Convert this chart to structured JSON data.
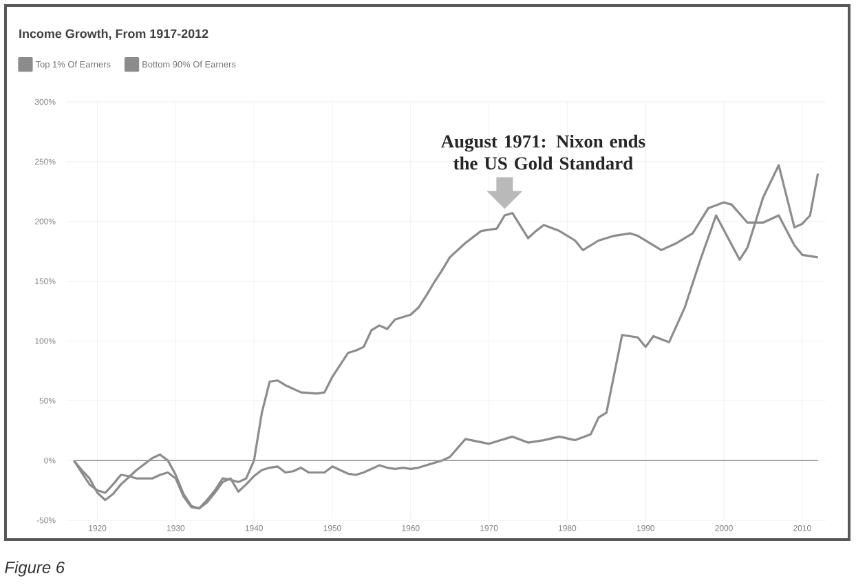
{
  "chart_data": {
    "type": "line",
    "title": "Income Growth, From 1917-2012",
    "series": [
      {
        "name": "Top 1% Of Earners",
        "color": "#8c8c8c",
        "x": [
          1917,
          1918,
          1919,
          1920,
          1921,
          1922,
          1923,
          1924,
          1925,
          1926,
          1927,
          1928,
          1929,
          1930,
          1931,
          1932,
          1933,
          1934,
          1935,
          1936,
          1937,
          1938,
          1939,
          1940,
          1941,
          1942,
          1943,
          1944,
          1945,
          1946,
          1947,
          1948,
          1949,
          1950,
          1951,
          1952,
          1953,
          1954,
          1955,
          1956,
          1957,
          1958,
          1959,
          1960,
          1961,
          1962,
          1963,
          1964,
          1965,
          1967,
          1970,
          1973,
          1975,
          1977,
          1979,
          1981,
          1983,
          1984,
          1985,
          1987,
          1989,
          1990,
          1991,
          1993,
          1995,
          1997,
          1999,
          2002,
          2003,
          2005,
          2007,
          2009,
          2010,
          2011,
          2012
        ],
        "values": [
          0,
          -8,
          -15,
          -27,
          -33,
          -28,
          -20,
          -14,
          -8,
          -3,
          2,
          5,
          0,
          -12,
          -28,
          -38,
          -40,
          -35,
          -27,
          -18,
          -15,
          -26,
          -20,
          -13,
          -8,
          -6,
          -5,
          -10,
          -9,
          -6,
          -10,
          -10,
          -10,
          -5,
          -8,
          -11,
          -12,
          -10,
          -7,
          -4,
          -6,
          -7,
          -6,
          -7,
          -6,
          -4,
          -2,
          0,
          3,
          18,
          14,
          20,
          15,
          17,
          20,
          17,
          22,
          36,
          40,
          105,
          103,
          95,
          104,
          99,
          128,
          168,
          205,
          168,
          178,
          220,
          247,
          195,
          198,
          205,
          240
        ]
      },
      {
        "name": "Bottom 90% Of Earners",
        "color": "#8c8c8c",
        "x": [
          1917,
          1918,
          1919,
          1920,
          1921,
          1922,
          1923,
          1924,
          1925,
          1926,
          1927,
          1928,
          1929,
          1930,
          1931,
          1932,
          1933,
          1934,
          1935,
          1936,
          1937,
          1938,
          1939,
          1940,
          1941,
          1942,
          1943,
          1944,
          1946,
          1948,
          1949,
          1950,
          1952,
          1953,
          1954,
          1955,
          1956,
          1957,
          1958,
          1960,
          1961,
          1962,
          1963,
          1964,
          1965,
          1967,
          1969,
          1970,
          1971,
          1972,
          1973,
          1975,
          1976,
          1977,
          1979,
          1981,
          1982,
          1984,
          1986,
          1988,
          1989,
          1991,
          1992,
          1994,
          1996,
          1998,
          2000,
          2001,
          2003,
          2005,
          2007,
          2009,
          2010,
          2012
        ],
        "values": [
          0,
          -10,
          -20,
          -25,
          -27,
          -20,
          -12,
          -13,
          -15,
          -15,
          -15,
          -12,
          -10,
          -15,
          -30,
          -39,
          -40,
          -33,
          -25,
          -15,
          -16,
          -18,
          -15,
          0,
          40,
          66,
          67,
          63,
          57,
          56,
          57,
          70,
          90,
          92,
          95,
          109,
          113,
          110,
          118,
          122,
          128,
          138,
          149,
          159,
          170,
          182,
          192,
          193,
          194,
          205,
          207,
          186,
          192,
          197,
          192,
          184,
          176,
          184,
          188,
          190,
          188,
          180,
          176,
          182,
          190,
          211,
          216,
          214,
          199,
          199,
          205,
          180,
          172,
          170
        ]
      }
    ],
    "xlim": [
      1916,
      2013
    ],
    "ylim": [
      -50,
      300
    ],
    "xticks": [
      1920,
      1930,
      1940,
      1950,
      1960,
      1970,
      1980,
      1990,
      2000,
      2010
    ],
    "yticks": [
      {
        "value": -50,
        "label": "-50%"
      },
      {
        "value": 0,
        "label": "0%"
      },
      {
        "value": 50,
        "label": "50%"
      },
      {
        "value": 100,
        "label": "100%"
      },
      {
        "value": 150,
        "label": "150%"
      },
      {
        "value": 200,
        "label": "200%"
      },
      {
        "value": 250,
        "label": "250%"
      },
      {
        "value": 300,
        "label": "300%"
      }
    ],
    "grid": true,
    "legend": "top left",
    "marker": "none",
    "line_style": "solid",
    "ref_lines": [
      {
        "axis": "y",
        "value": 0,
        "color": "#9a9a9a"
      }
    ],
    "annotations": [
      {
        "text": "August 1971: Nixon ends the US Gold Standard",
        "x": 1972,
        "y": 207
      },
      "Figure 6"
    ]
  }
}
